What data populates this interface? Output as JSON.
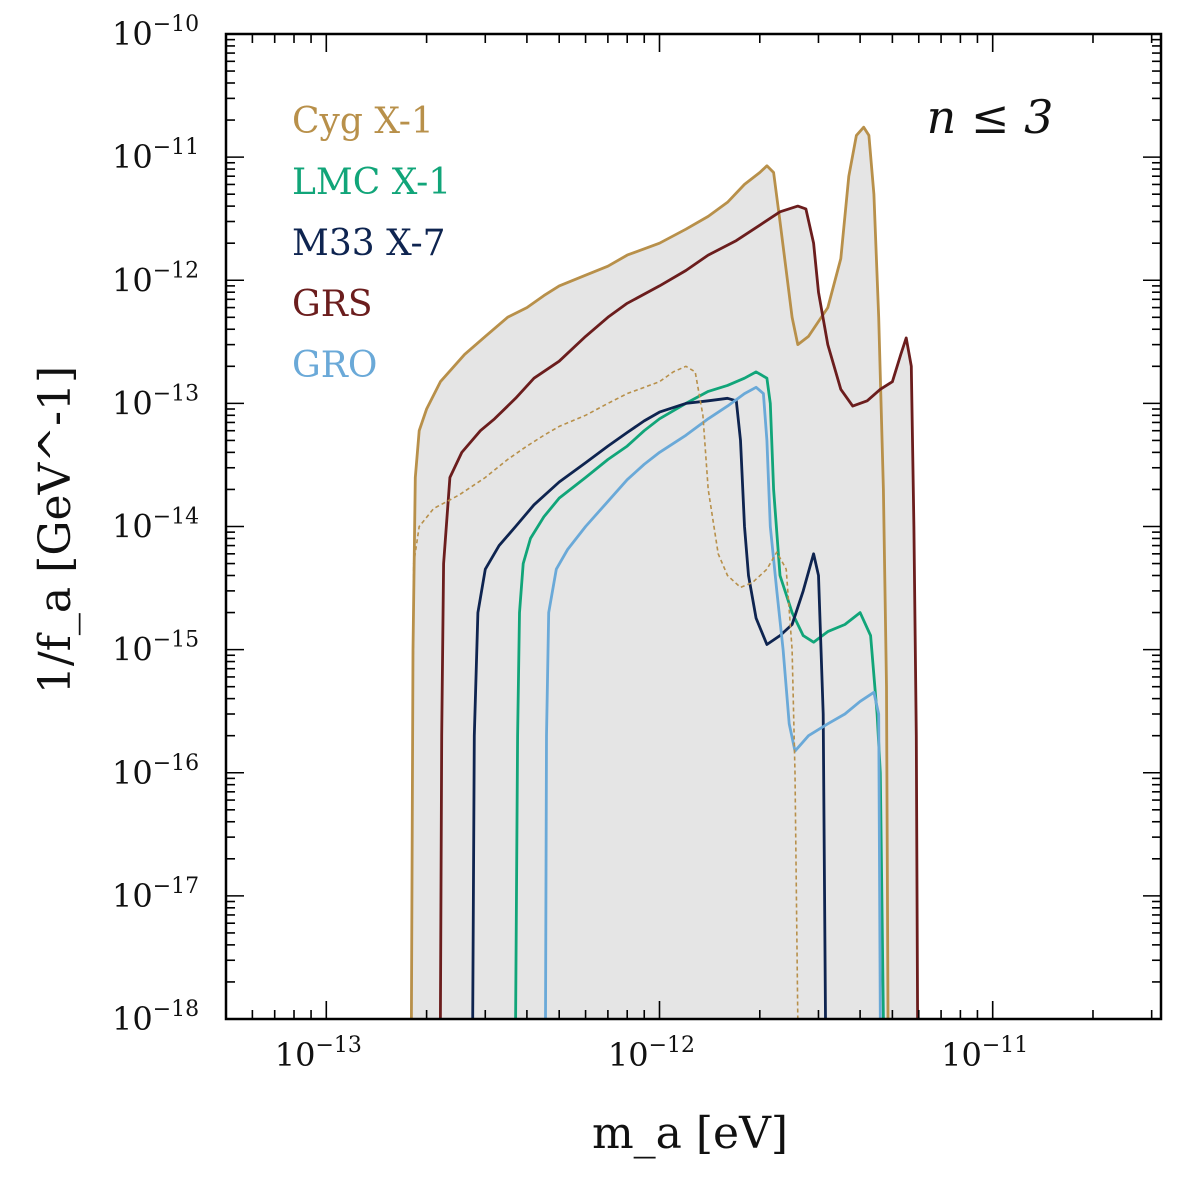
{
  "chart_data": {
    "type": "line",
    "title": "",
    "xlabel": "m_a [eV]",
    "ylabel": "1/f_a  [GeV^-1]",
    "xscale": "log",
    "yscale": "log",
    "xlim": [
      5e-14,
      3.2e-11
    ],
    "ylim": [
      1e-18,
      1e-10
    ],
    "x_ticks": [
      {
        "base": "10",
        "exp": "−13",
        "value": 1e-13
      },
      {
        "base": "10",
        "exp": "−12",
        "value": 1e-12
      },
      {
        "base": "10",
        "exp": "−11",
        "value": 1e-11
      }
    ],
    "y_ticks": [
      {
        "base": "10",
        "exp": "−10",
        "value": 1e-10
      },
      {
        "base": "10",
        "exp": "−11",
        "value": 1e-11
      },
      {
        "base": "10",
        "exp": "−12",
        "value": 1e-12
      },
      {
        "base": "10",
        "exp": "−13",
        "value": 1e-13
      },
      {
        "base": "10",
        "exp": "−14",
        "value": 1e-14
      },
      {
        "base": "10",
        "exp": "−15",
        "value": 1e-15
      },
      {
        "base": "10",
        "exp": "−16",
        "value": 1e-16
      },
      {
        "base": "10",
        "exp": "−17",
        "value": 1e-17
      },
      {
        "base": "10",
        "exp": "−18",
        "value": 1e-18
      }
    ],
    "annotation": "n ≤ 3",
    "legend_position": "top-left",
    "shaded_region_color": "#e5e5e5",
    "series": [
      {
        "name": "Cyg X-1",
        "color": "#b8904a",
        "style": "solid",
        "points": [
          [
            1.8e-13,
            1e-18
          ],
          [
            1.82e-13,
            1e-15
          ],
          [
            1.85e-13,
            2.5e-14
          ],
          [
            1.9e-13,
            6e-14
          ],
          [
            2e-13,
            9e-14
          ],
          [
            2.2e-13,
            1.5e-13
          ],
          [
            2.6e-13,
            2.5e-13
          ],
          [
            3e-13,
            3.5e-13
          ],
          [
            3.5e-13,
            5e-13
          ],
          [
            4e-13,
            6e-13
          ],
          [
            4.5e-13,
            7.5e-13
          ],
          [
            5e-13,
            9e-13
          ],
          [
            6e-13,
            1.1e-12
          ],
          [
            7e-13,
            1.3e-12
          ],
          [
            8e-13,
            1.6e-12
          ],
          [
            1e-12,
            2e-12
          ],
          [
            1.2e-12,
            2.6e-12
          ],
          [
            1.4e-12,
            3.3e-12
          ],
          [
            1.6e-12,
            4.3e-12
          ],
          [
            1.8e-12,
            6e-12
          ],
          [
            2e-12,
            7.5e-12
          ],
          [
            2.1e-12,
            8.5e-12
          ],
          [
            2.2e-12,
            7.5e-12
          ],
          [
            2.3e-12,
            3e-12
          ],
          [
            2.4e-12,
            1.2e-12
          ],
          [
            2.5e-12,
            5e-13
          ],
          [
            2.6e-12,
            3e-13
          ],
          [
            2.8e-12,
            3.5e-13
          ],
          [
            3.2e-12,
            6e-13
          ],
          [
            3.5e-12,
            1.5e-12
          ],
          [
            3.7e-12,
            7e-12
          ],
          [
            3.9e-12,
            1.5e-11
          ],
          [
            4.1e-12,
            1.75e-11
          ],
          [
            4.25e-12,
            1.5e-11
          ],
          [
            4.4e-12,
            5e-12
          ],
          [
            4.55e-12,
            5e-13
          ],
          [
            4.7e-12,
            2e-14
          ],
          [
            4.8e-12,
            5e-16
          ],
          [
            4.85e-12,
            1e-18
          ]
        ]
      },
      {
        "name": "LMC X-1",
        "color": "#11a579",
        "style": "solid",
        "points": [
          [
            3.7e-13,
            1e-18
          ],
          [
            3.75e-13,
            2e-16
          ],
          [
            3.8e-13,
            2e-15
          ],
          [
            3.9e-13,
            5e-15
          ],
          [
            4.1e-13,
            8e-15
          ],
          [
            4.5e-13,
            1.2e-14
          ],
          [
            5e-13,
            1.7e-14
          ],
          [
            6e-13,
            2.5e-14
          ],
          [
            7e-13,
            3.5e-14
          ],
          [
            8e-13,
            4.5e-14
          ],
          [
            9e-13,
            6e-14
          ],
          [
            1e-12,
            7.5e-14
          ],
          [
            1.2e-12,
            1e-13
          ],
          [
            1.4e-12,
            1.25e-13
          ],
          [
            1.6e-12,
            1.4e-13
          ],
          [
            1.8e-12,
            1.6e-13
          ],
          [
            1.95e-12,
            1.8e-13
          ],
          [
            2.1e-12,
            1.6e-13
          ],
          [
            2.15e-12,
            1e-13
          ],
          [
            2.2e-12,
            2e-14
          ],
          [
            2.3e-12,
            4e-15
          ],
          [
            2.5e-12,
            2e-15
          ],
          [
            2.7e-12,
            1.3e-15
          ],
          [
            2.9e-12,
            1.15e-15
          ],
          [
            3.2e-12,
            1.4e-15
          ],
          [
            3.6e-12,
            1.6e-15
          ],
          [
            4e-12,
            2e-15
          ],
          [
            4.3e-12,
            1.3e-15
          ],
          [
            4.5e-12,
            3e-16
          ],
          [
            4.6e-12,
            1e-16
          ],
          [
            4.7e-12,
            1e-18
          ]
        ]
      },
      {
        "name": "M33 X-7",
        "color": "#0e2450",
        "style": "solid",
        "points": [
          [
            2.75e-13,
            1e-18
          ],
          [
            2.78e-13,
            2e-16
          ],
          [
            2.85e-13,
            2e-15
          ],
          [
            3e-13,
            4.5e-15
          ],
          [
            3.3e-13,
            7e-15
          ],
          [
            3.7e-13,
            1e-14
          ],
          [
            4.2e-13,
            1.5e-14
          ],
          [
            5e-13,
            2.3e-14
          ],
          [
            6e-13,
            3.3e-14
          ],
          [
            7e-13,
            4.5e-14
          ],
          [
            8e-13,
            5.8e-14
          ],
          [
            9e-13,
            7.2e-14
          ],
          [
            1e-12,
            8.5e-14
          ],
          [
            1.2e-12,
            1e-13
          ],
          [
            1.4e-12,
            1.05e-13
          ],
          [
            1.6e-12,
            1.1e-13
          ],
          [
            1.7e-12,
            1.05e-13
          ],
          [
            1.75e-12,
            5e-14
          ],
          [
            1.8e-12,
            1e-14
          ],
          [
            1.85e-12,
            4e-15
          ],
          [
            1.95e-12,
            1.8e-15
          ],
          [
            2.1e-12,
            1.1e-15
          ],
          [
            2.3e-12,
            1.3e-15
          ],
          [
            2.5e-12,
            1.6e-15
          ],
          [
            2.7e-12,
            3e-15
          ],
          [
            2.9e-12,
            6e-15
          ],
          [
            3e-12,
            4e-15
          ],
          [
            3.1e-12,
            3e-16
          ],
          [
            3.15e-12,
            1e-18
          ]
        ]
      },
      {
        "name": "GRS",
        "color": "#6b1d1d",
        "style": "solid",
        "points": [
          [
            2.2e-13,
            1e-18
          ],
          [
            2.22e-13,
            2e-16
          ],
          [
            2.25e-13,
            5e-15
          ],
          [
            2.35e-13,
            2.5e-14
          ],
          [
            2.55e-13,
            4e-14
          ],
          [
            2.9e-13,
            6e-14
          ],
          [
            3.2e-13,
            7.5e-14
          ],
          [
            3.7e-13,
            1.1e-13
          ],
          [
            4.2e-13,
            1.6e-13
          ],
          [
            5e-13,
            2.2e-13
          ],
          [
            6e-13,
            3.5e-13
          ],
          [
            7e-13,
            5e-13
          ],
          [
            8e-13,
            6.5e-13
          ],
          [
            1e-12,
            9e-13
          ],
          [
            1.2e-12,
            1.2e-12
          ],
          [
            1.4e-12,
            1.6e-12
          ],
          [
            1.7e-12,
            2.1e-12
          ],
          [
            2e-12,
            2.8e-12
          ],
          [
            2.3e-12,
            3.6e-12
          ],
          [
            2.6e-12,
            4e-12
          ],
          [
            2.75e-12,
            3.8e-12
          ],
          [
            2.9e-12,
            2e-12
          ],
          [
            3e-12,
            8e-13
          ],
          [
            3.2e-12,
            3e-13
          ],
          [
            3.5e-12,
            1.3e-13
          ],
          [
            3.8e-12,
            9.5e-14
          ],
          [
            4.2e-12,
            1.05e-13
          ],
          [
            4.6e-12,
            1.3e-13
          ],
          [
            5e-12,
            1.5e-13
          ],
          [
            5.3e-12,
            2.5e-13
          ],
          [
            5.5e-12,
            3.4e-13
          ],
          [
            5.7e-12,
            2e-13
          ],
          [
            5.8e-12,
            1e-14
          ],
          [
            5.9e-12,
            2e-16
          ],
          [
            5.95e-12,
            1e-18
          ]
        ]
      },
      {
        "name": "GRO",
        "color": "#6aa9d8",
        "style": "solid",
        "points": [
          [
            4.55e-13,
            1e-18
          ],
          [
            4.58e-13,
            2e-16
          ],
          [
            4.65e-13,
            2e-15
          ],
          [
            4.9e-13,
            4.5e-15
          ],
          [
            5.3e-13,
            6.5e-15
          ],
          [
            6e-13,
            1e-14
          ],
          [
            7e-13,
            1.6e-14
          ],
          [
            8e-13,
            2.4e-14
          ],
          [
            9e-13,
            3.2e-14
          ],
          [
            1e-12,
            4e-14
          ],
          [
            1.2e-12,
            5.5e-14
          ],
          [
            1.4e-12,
            7.5e-14
          ],
          [
            1.6e-12,
            9.5e-14
          ],
          [
            1.8e-12,
            1.2e-13
          ],
          [
            1.95e-12,
            1.35e-13
          ],
          [
            2.05e-12,
            1.2e-13
          ],
          [
            2.1e-12,
            5e-14
          ],
          [
            2.15e-12,
            1e-14
          ],
          [
            2.25e-12,
            3e-15
          ],
          [
            2.35e-12,
            1e-15
          ],
          [
            2.45e-12,
            2.5e-16
          ],
          [
            2.55e-12,
            1.5e-16
          ],
          [
            2.8e-12,
            2e-16
          ],
          [
            3.2e-12,
            2.5e-16
          ],
          [
            3.6e-12,
            3e-16
          ],
          [
            4e-12,
            3.8e-16
          ],
          [
            4.4e-12,
            4.5e-16
          ],
          [
            4.55e-12,
            3e-16
          ],
          [
            4.6e-12,
            1e-18
          ]
        ]
      },
      {
        "name": "Cyg X-1 (dashed)",
        "color": "#b8904a",
        "style": "dashed",
        "legend": false,
        "points": [
          [
            1.8e-13,
            1e-18
          ],
          [
            1.83e-13,
            5e-15
          ],
          [
            1.9e-13,
            1e-14
          ],
          [
            2.1e-13,
            1.4e-14
          ],
          [
            2.5e-13,
            1.8e-14
          ],
          [
            3e-13,
            2.5e-14
          ],
          [
            3.5e-13,
            3.5e-14
          ],
          [
            4e-13,
            4.5e-14
          ],
          [
            4.5e-13,
            5.5e-14
          ],
          [
            5e-13,
            6.5e-14
          ],
          [
            6e-13,
            8e-14
          ],
          [
            7e-13,
            1e-13
          ],
          [
            8e-13,
            1.2e-13
          ],
          [
            1e-12,
            1.5e-13
          ],
          [
            1.1e-12,
            1.8e-13
          ],
          [
            1.2e-12,
            2e-13
          ],
          [
            1.28e-12,
            1.8e-13
          ],
          [
            1.35e-12,
            8e-14
          ],
          [
            1.4e-12,
            2e-14
          ],
          [
            1.5e-12,
            6e-15
          ],
          [
            1.6e-12,
            4e-15
          ],
          [
            1.75e-12,
            3.2e-15
          ],
          [
            1.9e-12,
            3.5e-15
          ],
          [
            2.1e-12,
            4.5e-15
          ],
          [
            2.25e-12,
            6.2e-15
          ],
          [
            2.4e-12,
            4.5e-15
          ],
          [
            2.5e-12,
            1e-15
          ],
          [
            2.55e-12,
            1e-16
          ],
          [
            2.6e-12,
            1e-18
          ]
        ]
      }
    ]
  }
}
